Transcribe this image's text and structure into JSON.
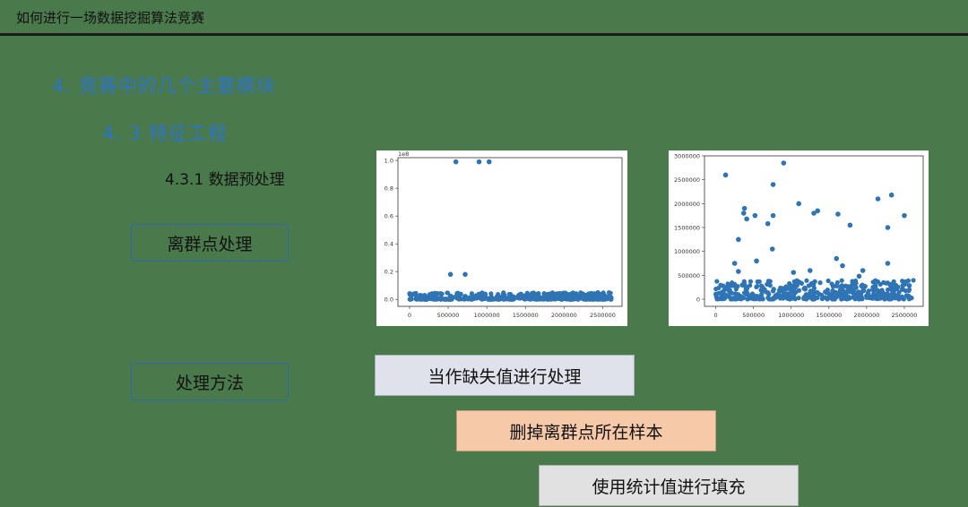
{
  "header": {
    "title": "如何进行一场数据挖掘算法竞赛"
  },
  "section": {
    "h1": "4. 竞赛中的几个主要模块",
    "h2": "4. 3  特征工程",
    "h3": "4.3.1 数据预处理"
  },
  "labels": {
    "outlier": "离群点处理",
    "method": "处理方法"
  },
  "methods": [
    "当作缺失值进行处理",
    "删掉离群点所在样本",
    "使用统计值进行填充"
  ],
  "colors": {
    "background": "#4a7a4c",
    "heading": "#2d74c8",
    "points": "#2f74b5"
  },
  "chart_data": [
    {
      "type": "scatter",
      "offset_label": "1e8",
      "xlim": [
        -150000,
        2750000
      ],
      "ylim": [
        -0.05,
        1.02
      ],
      "x_ticks": [
        0,
        500000,
        1000000,
        1500000,
        2000000,
        2500000
      ],
      "x_tick_labels": [
        "0",
        "500000",
        "1000000",
        "1500000",
        "2000000",
        "2500000"
      ],
      "y_ticks": [
        0.0,
        0.2,
        0.4,
        0.6,
        0.8,
        1.0
      ],
      "y_tick_labels": [
        "0.0",
        "0.2",
        "0.4",
        "0.6",
        "0.8",
        "1.0"
      ],
      "baseline": {
        "x_range": [
          0,
          2620000
        ],
        "y_range": [
          0.0,
          0.05
        ]
      },
      "outliers": [
        {
          "x": 530000,
          "y": 0.18
        },
        {
          "x": 720000,
          "y": 0.18
        },
        {
          "x": 600000,
          "y": 0.99
        },
        {
          "x": 900000,
          "y": 0.99
        },
        {
          "x": 1030000,
          "y": 0.99
        }
      ]
    },
    {
      "type": "scatter",
      "xlim": [
        -150000,
        2750000
      ],
      "ylim": [
        -150000,
        3000000
      ],
      "x_ticks": [
        0,
        500000,
        1000000,
        1500000,
        2000000,
        2500000
      ],
      "x_tick_labels": [
        "0",
        "500000",
        "1000000",
        "1500000",
        "2000000",
        "2500000"
      ],
      "y_ticks": [
        0,
        500000,
        1000000,
        1500000,
        2000000,
        2500000,
        3000000
      ],
      "y_tick_labels": [
        "0",
        "500000",
        "1000000",
        "1500000",
        "2000000",
        "2500000",
        "3000000"
      ],
      "baseline": {
        "x_range": [
          0,
          2620000
        ],
        "y_range": [
          0,
          400000
        ]
      },
      "outliers": [
        {
          "x": 130000,
          "y": 2600000
        },
        {
          "x": 300000,
          "y": 1250000
        },
        {
          "x": 250000,
          "y": 750000
        },
        {
          "x": 380000,
          "y": 1900000
        },
        {
          "x": 370000,
          "y": 1800000
        },
        {
          "x": 410000,
          "y": 1680000
        },
        {
          "x": 520000,
          "y": 1750000
        },
        {
          "x": 540000,
          "y": 800000
        },
        {
          "x": 690000,
          "y": 1580000
        },
        {
          "x": 760000,
          "y": 1750000
        },
        {
          "x": 750000,
          "y": 1050000
        },
        {
          "x": 760000,
          "y": 2400000
        },
        {
          "x": 900000,
          "y": 2850000
        },
        {
          "x": 1100000,
          "y": 2000000
        },
        {
          "x": 1300000,
          "y": 1800000
        },
        {
          "x": 1350000,
          "y": 1850000
        },
        {
          "x": 1600000,
          "y": 850000
        },
        {
          "x": 1620000,
          "y": 1780000
        },
        {
          "x": 1680000,
          "y": 700000
        },
        {
          "x": 1780000,
          "y": 1550000
        },
        {
          "x": 2150000,
          "y": 2100000
        },
        {
          "x": 2280000,
          "y": 1500000
        },
        {
          "x": 2330000,
          "y": 2180000
        },
        {
          "x": 2280000,
          "y": 750000
        },
        {
          "x": 2500000,
          "y": 1750000
        },
        {
          "x": 1250000,
          "y": 600000
        },
        {
          "x": 1950000,
          "y": 600000
        },
        {
          "x": 300000,
          "y": 580000
        },
        {
          "x": 1900000,
          "y": 480000
        },
        {
          "x": 1030000,
          "y": 560000
        }
      ]
    }
  ]
}
